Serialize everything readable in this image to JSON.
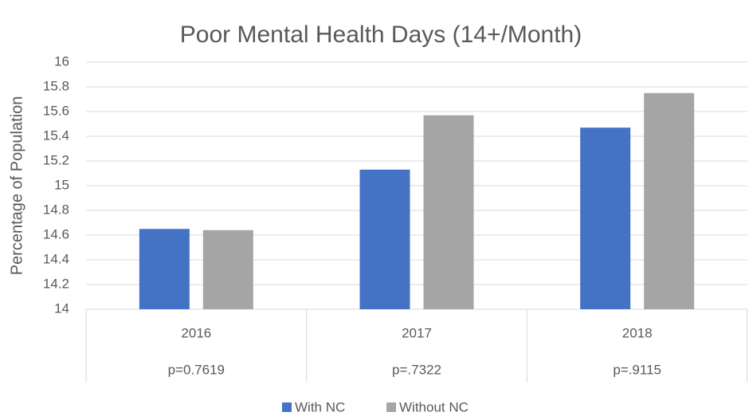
{
  "chart_data": {
    "type": "bar",
    "title": "Poor Mental Health Days (14+/Month)",
    "y_label": "Percentage of Population",
    "categories": [
      "2016",
      "2017",
      "2018"
    ],
    "sub_labels": [
      "p=0.7619",
      "p=.7322",
      "p=.9115"
    ],
    "series": [
      {
        "name": "With NC",
        "color": "#4472c4",
        "values": [
          14.65,
          15.13,
          15.47
        ]
      },
      {
        "name": "Without NC",
        "color": "#a5a5a5",
        "values": [
          14.64,
          15.57,
          15.75
        ]
      }
    ],
    "ylim": [
      14,
      16
    ],
    "yticks": [
      14,
      14.2,
      14.4,
      14.6,
      14.8,
      15,
      15.2,
      15.4,
      15.6,
      15.8,
      16
    ],
    "grid": true,
    "legend": "bottom"
  }
}
